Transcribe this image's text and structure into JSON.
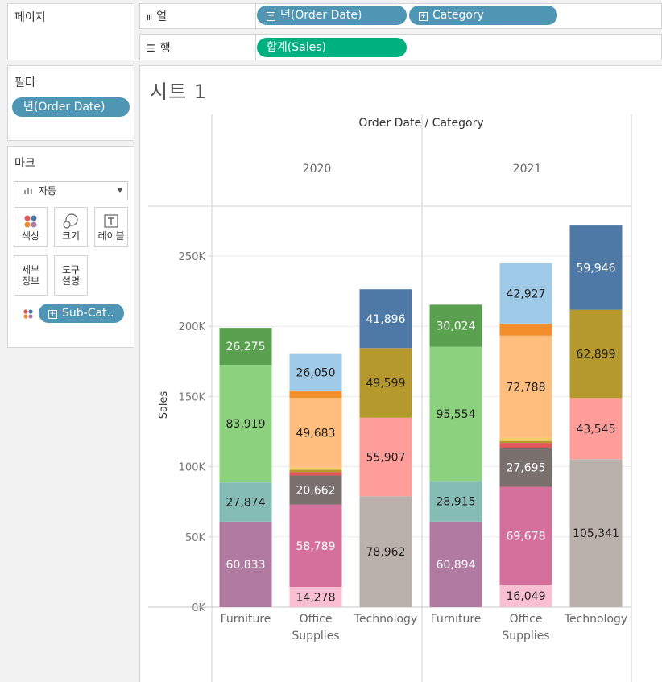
{
  "shelves": {
    "pages_label": "페이지",
    "columns_label": "열",
    "rows_label": "행",
    "columns_pills": [
      "년(Order Date)",
      "Category"
    ],
    "rows_pills": [
      "합계(Sales)"
    ]
  },
  "filters": {
    "title": "필터",
    "pills": [
      "년(Order Date)"
    ]
  },
  "marks": {
    "title": "마크",
    "mark_type": "자동",
    "buttons": {
      "color": "색상",
      "size": "크기",
      "label": "레이블",
      "detail": "세부\n정보",
      "tooltip": "도구\n설명"
    },
    "color_field": "Sub-Cat.."
  },
  "sheet": {
    "title": "시트 1"
  },
  "colors": {
    "pill_blue": "#4e96b4",
    "pill_green": "#00b180"
  },
  "chart_data": {
    "type": "bar",
    "stacked": true,
    "header_title": "Order Date / Category",
    "years": [
      "2020",
      "2021"
    ],
    "categories": [
      "Furniture",
      "Office Supplies",
      "Technology"
    ],
    "category_labels": [
      [
        "Furniture"
      ],
      [
        "Office",
        "Supplies"
      ],
      [
        "Technology"
      ]
    ],
    "ylabel": "Sales",
    "ylim": [
      0,
      275000
    ],
    "yticks": [
      0,
      50000,
      100000,
      150000,
      200000,
      250000
    ],
    "ytick_labels": [
      "0K",
      "50K",
      "100K",
      "150K",
      "200K",
      "250K"
    ],
    "grid": true,
    "bars": [
      {
        "year": "2020",
        "category": "Furniture",
        "segments": [
          {
            "value": 60833,
            "color": "#b07aa1",
            "label": "60,833",
            "label_color": "#ffffff"
          },
          {
            "value": 27874,
            "color": "#86bcb6",
            "label": "27,874",
            "label_color": "#222222"
          },
          {
            "value": 83919,
            "color": "#8cd17d",
            "label": "83,919",
            "label_color": "#222222"
          },
          {
            "value": 26275,
            "color": "#59a14f",
            "label": "26,275",
            "label_color": "#ffffff"
          }
        ]
      },
      {
        "year": "2020",
        "category": "Office Supplies",
        "segments": [
          {
            "value": 14278,
            "color": "#fabfd2",
            "label": "14,278",
            "label_color": "#222222"
          },
          {
            "value": 58789,
            "color": "#d4709b",
            "label": "58,789",
            "label_color": "#ffffff"
          },
          {
            "value": 20662,
            "color": "#79706e",
            "label": "20,662",
            "label_color": "#ffffff"
          },
          {
            "value": 2500,
            "color": "#e15759",
            "label": "",
            "label_color": "#222222"
          },
          {
            "value": 1600,
            "color": "#b6992d",
            "label": "",
            "label_color": "#222222"
          },
          {
            "value": 1500,
            "color": "#f1ce63",
            "label": "",
            "label_color": "#222222"
          },
          {
            "value": 49683,
            "color": "#ffbe7d",
            "label": "49,683",
            "label_color": "#222222"
          },
          {
            "value": 5200,
            "color": "#f28e2b",
            "label": "",
            "label_color": "#222222"
          },
          {
            "value": 26050,
            "color": "#a0cbe8",
            "label": "26,050",
            "label_color": "#222222"
          }
        ]
      },
      {
        "year": "2020",
        "category": "Technology",
        "segments": [
          {
            "value": 78962,
            "color": "#bab0ac",
            "label": "78,962",
            "label_color": "#222222"
          },
          {
            "value": 55907,
            "color": "#ff9d9a",
            "label": "55,907",
            "label_color": "#222222"
          },
          {
            "value": 49599,
            "color": "#b6992d",
            "label": "49,599",
            "label_color": "#222222"
          },
          {
            "value": 41896,
            "color": "#4e79a7",
            "label": "41,896",
            "label_color": "#ffffff"
          }
        ]
      },
      {
        "year": "2021",
        "category": "Furniture",
        "segments": [
          {
            "value": 60894,
            "color": "#b07aa1",
            "label": "60,894",
            "label_color": "#ffffff"
          },
          {
            "value": 28915,
            "color": "#86bcb6",
            "label": "28,915",
            "label_color": "#222222"
          },
          {
            "value": 95554,
            "color": "#8cd17d",
            "label": "95,554",
            "label_color": "#222222"
          },
          {
            "value": 30024,
            "color": "#59a14f",
            "label": "30,024",
            "label_color": "#ffffff"
          }
        ]
      },
      {
        "year": "2021",
        "category": "Office Supplies",
        "segments": [
          {
            "value": 16049,
            "color": "#fabfd2",
            "label": "16,049",
            "label_color": "#222222"
          },
          {
            "value": 69678,
            "color": "#d4709b",
            "label": "69,678",
            "label_color": "#ffffff"
          },
          {
            "value": 27695,
            "color": "#79706e",
            "label": "27,695",
            "label_color": "#ffffff"
          },
          {
            "value": 3500,
            "color": "#e15759",
            "label": "",
            "label_color": "#222222"
          },
          {
            "value": 1400,
            "color": "#b6992d",
            "label": "",
            "label_color": "#222222"
          },
          {
            "value": 2200,
            "color": "#f1ce63",
            "label": "",
            "label_color": "#222222"
          },
          {
            "value": 72788,
            "color": "#ffbe7d",
            "label": "72,788",
            "label_color": "#222222"
          },
          {
            "value": 8600,
            "color": "#f28e2b",
            "label": "",
            "label_color": "#222222"
          },
          {
            "value": 42927,
            "color": "#a0cbe8",
            "label": "42,927",
            "label_color": "#222222"
          }
        ]
      },
      {
        "year": "2021",
        "category": "Technology",
        "segments": [
          {
            "value": 105341,
            "color": "#bab0ac",
            "label": "105,341",
            "label_color": "#222222"
          },
          {
            "value": 43545,
            "color": "#ff9d9a",
            "label": "43,545",
            "label_color": "#222222"
          },
          {
            "value": 62899,
            "color": "#b6992d",
            "label": "62,899",
            "label_color": "#222222"
          },
          {
            "value": 59946,
            "color": "#4e79a7",
            "label": "59,946",
            "label_color": "#ffffff"
          }
        ]
      }
    ]
  }
}
